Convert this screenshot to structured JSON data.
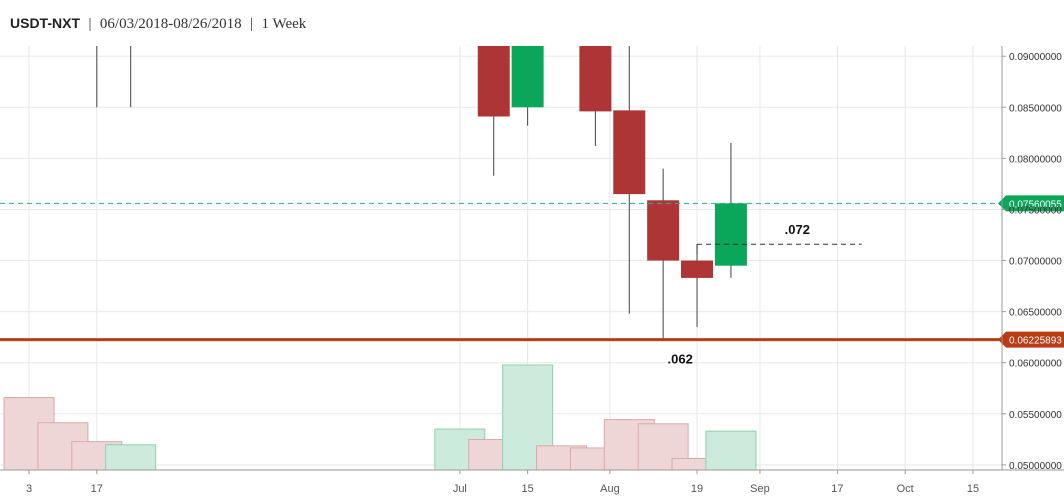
{
  "header": {
    "pair": "USDT-NXT",
    "sep1": "|",
    "range": "06/03/2018-08/26/2018",
    "sep2": "|",
    "interval": "1 Week"
  },
  "colors": {
    "up": "#0aa65a",
    "down": "#ad3535",
    "up_volume": "#cdebdc",
    "down_volume": "#efd6d6",
    "support_line": "#b93d14",
    "current_price_line": "#33aa88",
    "grid": "#e8e8e8"
  },
  "chart_data": {
    "type": "candlestick",
    "y_axis": {
      "range": [
        0.0495,
        0.091
      ],
      "ticks": [
        0.09,
        0.085,
        0.08,
        0.075,
        0.07,
        0.065,
        0.06,
        0.055,
        0.05
      ],
      "tick_labels": [
        "0.09000000",
        "0.08500000",
        "0.08000000",
        "0.07500000",
        "0.07000000",
        "0.06500000",
        "0.06000000",
        "0.05500000",
        "0.05000000"
      ],
      "side": "right"
    },
    "x_axis": {
      "type": "date",
      "range": [
        "2018-03-28",
        "2018-10-21"
      ],
      "ticks": [
        {
          "date": "2018-04-03",
          "label": "3"
        },
        {
          "date": "2018-04-17",
          "label": "17"
        },
        {
          "date": "2018-07-01",
          "label": "Jul"
        },
        {
          "date": "2018-07-15",
          "label": "15"
        },
        {
          "date": "2018-08-01",
          "label": "Aug"
        },
        {
          "date": "2018-08-19",
          "label": "19"
        },
        {
          "date": "2018-09-01",
          "label": "Sep"
        },
        {
          "date": "2018-09-17",
          "label": "17"
        },
        {
          "date": "2018-10-01",
          "label": "Oct"
        },
        {
          "date": "2018-10-15",
          "label": "15"
        }
      ]
    },
    "candles": [
      {
        "date": "2018-04-17",
        "open": 0.0905,
        "high": 0.091,
        "low": 0.085,
        "close": 0.0905
      },
      {
        "date": "2018-04-24",
        "open": 0.0905,
        "high": 0.091,
        "low": 0.085,
        "close": 0.0905
      },
      {
        "date": "2018-07-08",
        "open": 0.091,
        "high": 0.091,
        "low": 0.0783,
        "close": 0.0841
      },
      {
        "date": "2018-07-15",
        "open": 0.085,
        "high": 0.091,
        "low": 0.0832,
        "close": 0.091
      },
      {
        "date": "2018-07-29",
        "open": 0.091,
        "high": 0.091,
        "low": 0.0812,
        "close": 0.0846
      },
      {
        "date": "2018-08-05",
        "open": 0.0847,
        "high": 0.091,
        "low": 0.0648,
        "close": 0.0765
      },
      {
        "date": "2018-08-12",
        "open": 0.0759,
        "high": 0.079,
        "low": 0.0623,
        "close": 0.07
      },
      {
        "date": "2018-08-19",
        "open": 0.07,
        "high": 0.0716,
        "low": 0.0635,
        "close": 0.0683
      },
      {
        "date": "2018-08-26",
        "open": 0.0695,
        "high": 0.0815,
        "low": 0.0683,
        "close": 0.0756
      }
    ],
    "volume": {
      "note_units": "relative",
      "bars": [
        {
          "date": "2018-04-03",
          "value": 0.69,
          "direction": "down"
        },
        {
          "date": "2018-04-10",
          "value": 0.45,
          "direction": "down"
        },
        {
          "date": "2018-04-17",
          "value": 0.27,
          "direction": "down"
        },
        {
          "date": "2018-04-24",
          "value": 0.24,
          "direction": "up"
        },
        {
          "date": "2018-07-01",
          "value": 0.39,
          "direction": "up"
        },
        {
          "date": "2018-07-08",
          "value": 0.29,
          "direction": "down"
        },
        {
          "date": "2018-07-15",
          "value": 1.0,
          "direction": "up"
        },
        {
          "date": "2018-07-22",
          "value": 0.23,
          "direction": "down"
        },
        {
          "date": "2018-07-29",
          "value": 0.21,
          "direction": "down"
        },
        {
          "date": "2018-08-05",
          "value": 0.48,
          "direction": "down"
        },
        {
          "date": "2018-08-12",
          "value": 0.44,
          "direction": "down"
        },
        {
          "date": "2018-08-19",
          "value": 0.11,
          "direction": "down"
        },
        {
          "date": "2018-08-26",
          "value": 0.37,
          "direction": "up"
        }
      ]
    },
    "horizontal_lines": [
      {
        "name": "current-price",
        "value": 0.07560055,
        "label": "0.07560055",
        "style": "dashed"
      },
      {
        "name": "support",
        "value": 0.06225893,
        "label": "0.06225893",
        "style": "solid"
      }
    ],
    "annotations": [
      {
        "text": ".072",
        "value": 0.0716,
        "date_from": "2018-08-19",
        "date_to": "2018-09-22",
        "style": "dashed-line"
      },
      {
        "text": ".062",
        "value": 0.06225893,
        "date": "2018-08-12",
        "position": "below-line"
      }
    ]
  }
}
